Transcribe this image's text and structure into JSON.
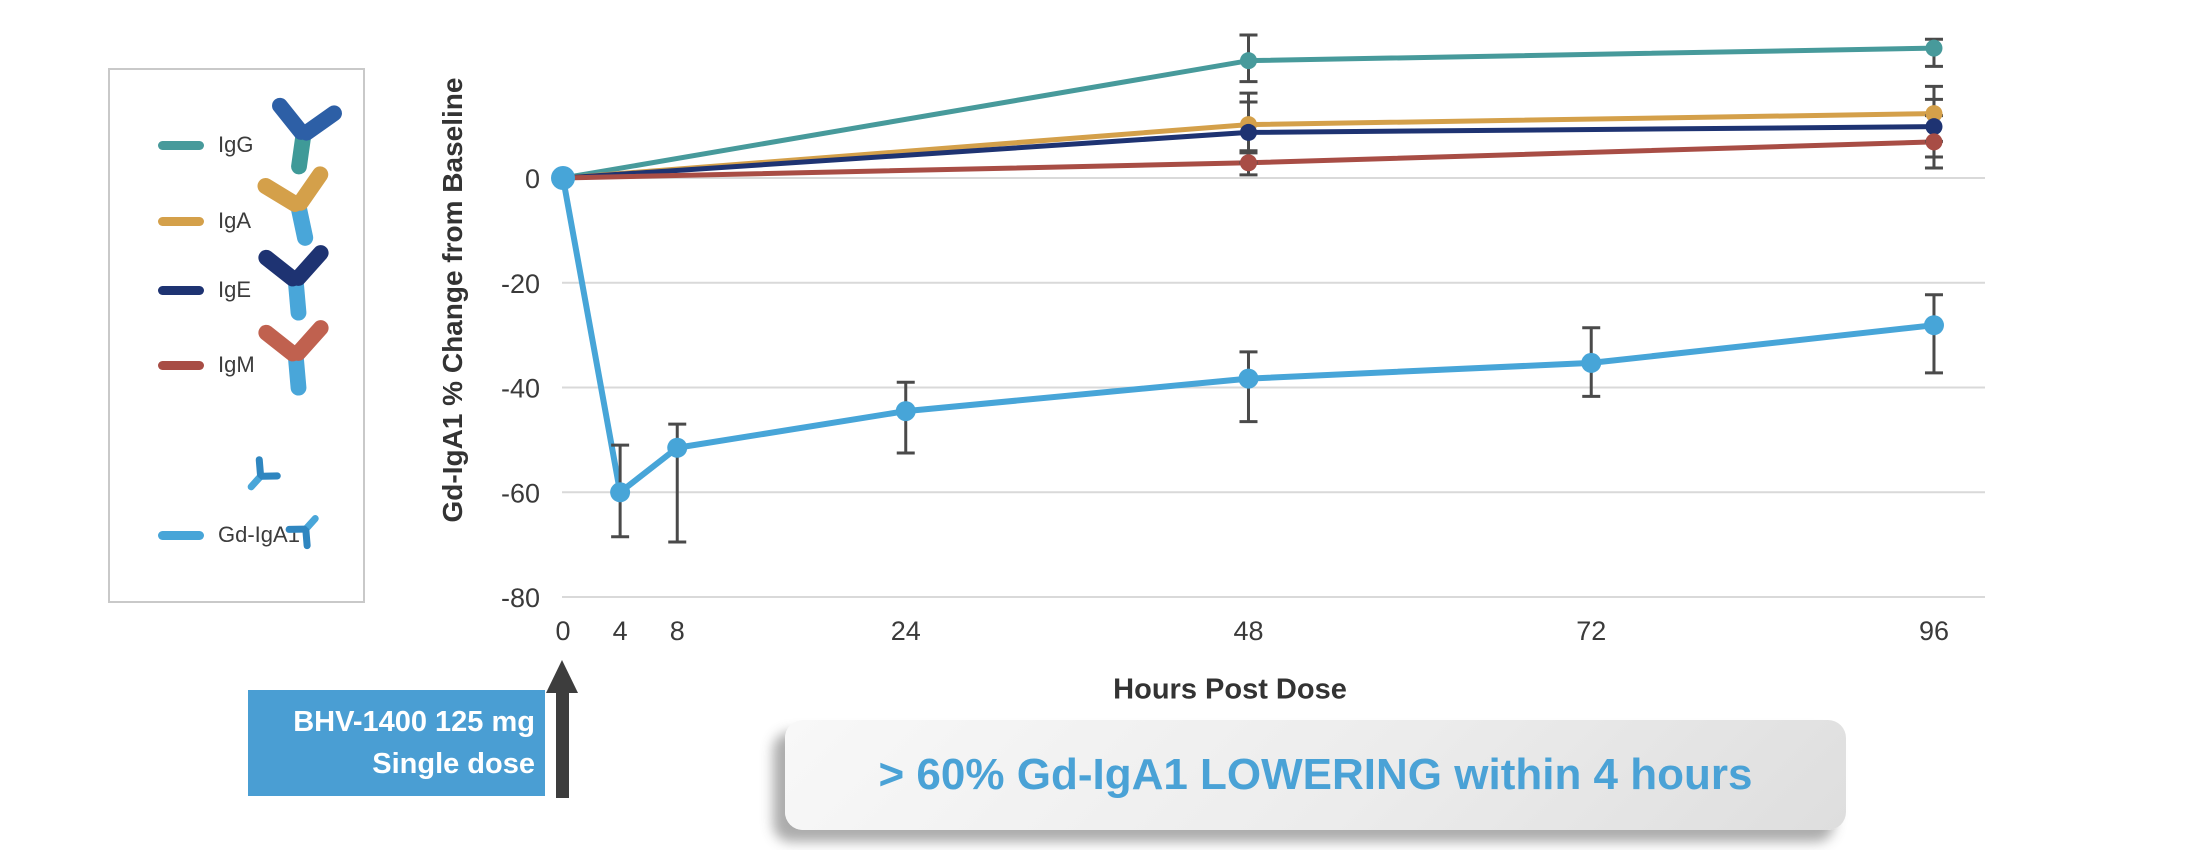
{
  "page": {
    "background": "#ffffff"
  },
  "legend": {
    "items": [
      {
        "label": "IgG",
        "swatch_color": "#479a9b",
        "molecule_body_color": "#3f9a98",
        "molecule_arm_color": "#2d5fa6",
        "icon": "igg-antibody-icon"
      },
      {
        "label": "IgA",
        "swatch_color": "#d4a04a",
        "molecule_body_color": "#49a6d9",
        "molecule_arm_color": "#d4a04a",
        "icon": "iga-antibody-icon"
      },
      {
        "label": "IgE",
        "swatch_color": "#1e3372",
        "molecule_body_color": "#49a6d9",
        "molecule_arm_color": "#1e3372",
        "icon": "ige-antibody-icon"
      },
      {
        "label": "IgM",
        "swatch_color": "#a84d45",
        "molecule_body_color": "#49a6d9",
        "molecule_arm_color": "#c0614f",
        "icon": "igm-antibody-icon"
      },
      {
        "label": "Gd-IgA1",
        "swatch_color": "#47a5d8",
        "molecule_body_color": "#49a6d9",
        "molecule_arm_color": "#2f86c0",
        "icon": "gd-iga1-antibody-icon"
      }
    ]
  },
  "chart_data": {
    "type": "line",
    "xlabel": "Hours Post Dose",
    "ylabel": "Gd-IgA1 % Change from Baseline",
    "x_ticks": [
      0,
      4,
      8,
      24,
      48,
      72,
      96
    ],
    "y_ticks": [
      0,
      -20,
      -40,
      -60,
      -80
    ],
    "ylim": [
      -80,
      30
    ],
    "x_axis_type": "linear-hours",
    "grid": "horizontal",
    "grid_color": "#d9d9d9",
    "tick_color": "#3a3a3a",
    "error_bar_color": "#4a4a4a",
    "legend_position": "left-box",
    "series": [
      {
        "name": "IgG",
        "color": "#479a9b",
        "x": [
          0,
          48,
          96
        ],
        "y": [
          0,
          22.4,
          24.8
        ],
        "err_lo": [
          null,
          18.4,
          21.3
        ],
        "err_hi": [
          null,
          27.3,
          26.5
        ]
      },
      {
        "name": "IgA",
        "color": "#d4a04a",
        "x": [
          0,
          48,
          96
        ],
        "y": [
          0,
          10.2,
          12.3
        ],
        "err_lo": [
          null,
          4.8,
          7.0
        ],
        "err_hi": [
          null,
          16.2,
          17.5
        ]
      },
      {
        "name": "IgE",
        "color": "#1e3372",
        "x": [
          0,
          48,
          96
        ],
        "y": [
          0,
          8.7,
          9.8
        ],
        "err_lo": [
          null,
          2.9,
          4.0
        ],
        "err_hi": [
          null,
          14.5,
          15.0
        ]
      },
      {
        "name": "IgM",
        "color": "#a84d45",
        "x": [
          0,
          48,
          96
        ],
        "y": [
          0,
          2.9,
          6.9
        ],
        "err_lo": [
          null,
          0.6,
          1.9
        ],
        "err_hi": [
          null,
          5.2,
          11.9
        ]
      },
      {
        "name": "Gd-IgA1",
        "color": "#47a5d8",
        "x": [
          0,
          4,
          8,
          24,
          48,
          72,
          96
        ],
        "y": [
          0,
          -60,
          -51.5,
          -44.5,
          -38.3,
          -35.3,
          -28.1
        ],
        "err_lo": [
          null,
          -68.5,
          -69.5,
          -52.5,
          -46.5,
          -41.7,
          -37.2
        ],
        "err_hi": [
          null,
          -51.0,
          -47.0,
          -39.0,
          -33.2,
          -28.6,
          -22.3
        ]
      }
    ]
  },
  "dose_callout": {
    "line1": "BHV-1400 125 mg",
    "line2": "Single dose",
    "bg_color": "#4a9ed3",
    "text_color": "#ffffff"
  },
  "banner": {
    "text": "> 60% Gd-IgA1 LOWERING within 4 hours",
    "text_color": "#4aa2d6"
  }
}
